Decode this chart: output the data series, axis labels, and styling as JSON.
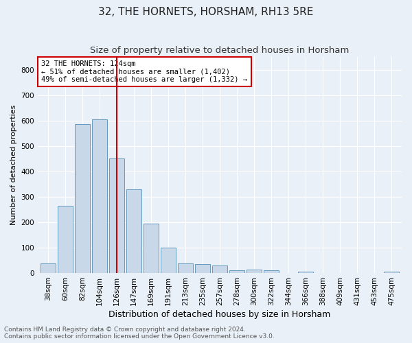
{
  "title": "32, THE HORNETS, HORSHAM, RH13 5RE",
  "subtitle": "Size of property relative to detached houses in Horsham",
  "xlabel": "Distribution of detached houses by size in Horsham",
  "ylabel": "Number of detached properties",
  "categories": [
    "38sqm",
    "60sqm",
    "82sqm",
    "104sqm",
    "126sqm",
    "147sqm",
    "169sqm",
    "191sqm",
    "213sqm",
    "235sqm",
    "257sqm",
    "278sqm",
    "300sqm",
    "322sqm",
    "344sqm",
    "366sqm",
    "388sqm",
    "409sqm",
    "431sqm",
    "453sqm",
    "475sqm"
  ],
  "values": [
    38,
    265,
    585,
    605,
    450,
    330,
    195,
    100,
    37,
    35,
    30,
    12,
    15,
    10,
    0,
    5,
    0,
    0,
    0,
    0,
    5
  ],
  "bar_color": "#c8d8e8",
  "bar_edge_color": "#6699bb",
  "vline_x": 4,
  "vline_color": "#cc0000",
  "annotation_text": "32 THE HORNETS: 124sqm\n← 51% of detached houses are smaller (1,402)\n49% of semi-detached houses are larger (1,332) →",
  "annotation_box_color": "#ffffff",
  "annotation_box_edge_color": "#cc0000",
  "ylim": [
    0,
    850
  ],
  "yticks": [
    0,
    100,
    200,
    300,
    400,
    500,
    600,
    700,
    800
  ],
  "background_color": "#eaf0f7",
  "plot_background_color": "#eaf0f7",
  "footer_line1": "Contains HM Land Registry data © Crown copyright and database right 2024.",
  "footer_line2": "Contains public sector information licensed under the Open Government Licence v3.0.",
  "title_fontsize": 11,
  "subtitle_fontsize": 9.5,
  "xlabel_fontsize": 9,
  "ylabel_fontsize": 8,
  "tick_fontsize": 7.5,
  "footer_fontsize": 6.5
}
